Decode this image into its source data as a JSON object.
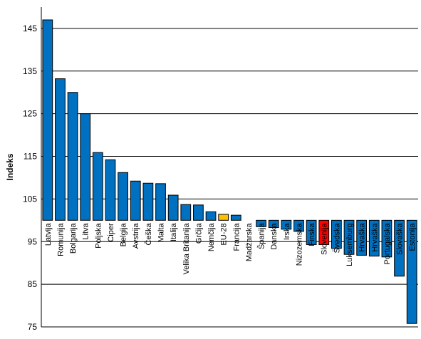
{
  "chart_data": {
    "type": "bar",
    "title": "",
    "xlabel": "",
    "ylabel": "Indeks",
    "ylim": [
      75,
      150
    ],
    "yticks": [
      75,
      85,
      95,
      105,
      115,
      125,
      135,
      145
    ],
    "baseline": 100,
    "grid": true,
    "categories": [
      "Latvija",
      "Romunija",
      "Bolgarija",
      "Litva",
      "Poljska",
      "Ciper",
      "Belgija",
      "Avstrija",
      "Češka",
      "Malta",
      "Italija",
      "Velika Britanija",
      "Grčija",
      "Nemčija",
      "EU-28",
      "Francija",
      "Madžarska",
      "Španija",
      "Danska",
      "Irska",
      "Nizozemska",
      "Finska",
      "Slovenija",
      "Švedska",
      "Luksemburg",
      "Hrvaška",
      "Hrvaška",
      "Portugalska",
      "Slovaška",
      "Estonija"
    ],
    "values": [
      147.0,
      133.2,
      130.0,
      125.0,
      115.9,
      114.2,
      111.2,
      109.2,
      108.7,
      108.6,
      105.9,
      103.7,
      103.6,
      102.0,
      101.4,
      101.2,
      100.0,
      98.5,
      98.3,
      97.9,
      97.4,
      94.3,
      94.3,
      93.4,
      92.0,
      91.8,
      91.6,
      91.4,
      86.9,
      75.8
    ],
    "colors": {
      "default": "#0070C0",
      "EU-28": "#FFC000",
      "Slovenija": "#FF0000",
      "grid": "#000000",
      "edge": "#000000"
    }
  }
}
